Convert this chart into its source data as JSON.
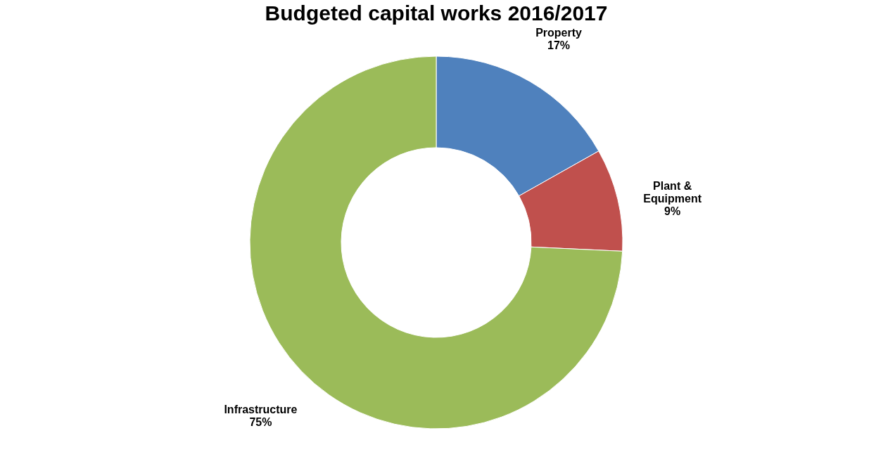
{
  "chart_data": {
    "type": "donut",
    "title": "Budgeted capital works 2016/2017",
    "categories": [
      "Property",
      "Plant & Equipment",
      "Infrastructure"
    ],
    "values": [
      17,
      9,
      75
    ],
    "colors": [
      "#4f81bd",
      "#c0504d",
      "#9bbb59"
    ],
    "value_labels": [
      "17%",
      "9%",
      "75%"
    ],
    "legend": false
  }
}
